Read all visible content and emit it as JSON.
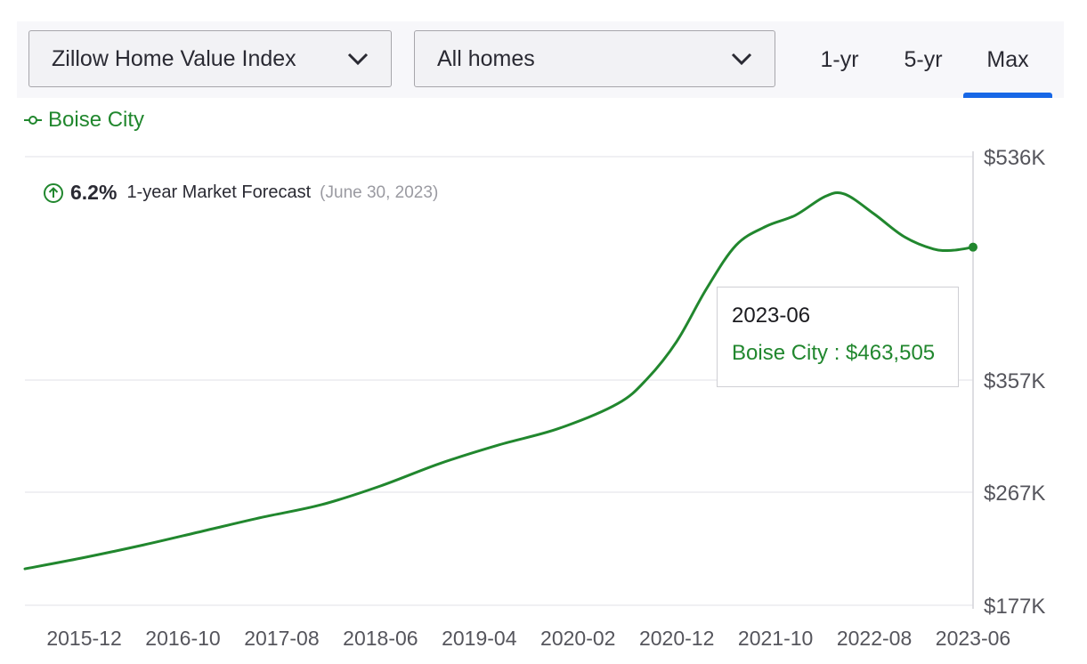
{
  "controls": {
    "metric_select": "Zillow Home Value Index",
    "homes_select": "All homes",
    "range_tabs": [
      "1-yr",
      "5-yr",
      "Max"
    ],
    "active_range": "Max",
    "accent_color": "#1767e6"
  },
  "legend": {
    "series_name": "Boise City",
    "color": "#21872e"
  },
  "forecast": {
    "icon": "arrow-up-circle-icon",
    "percent": "6.2%",
    "label": "1-year Market Forecast",
    "date": "(June 30, 2023)"
  },
  "tooltip": {
    "date": "2023-06",
    "text": "Boise City : $463,505"
  },
  "chart_data": {
    "type": "line",
    "title": "",
    "xlabel": "",
    "ylabel": "",
    "grid": true,
    "ylim": [
      177000,
      536000
    ],
    "y_ticks": [
      536000,
      357000,
      267000,
      177000
    ],
    "y_tick_labels": [
      "$536K",
      "$357K",
      "$267K",
      "$177K"
    ],
    "x_range": [
      "2015-06",
      "2023-06"
    ],
    "x_tick_labels": [
      "2015-12",
      "2016-10",
      "2017-08",
      "2018-06",
      "2019-04",
      "2020-02",
      "2020-12",
      "2021-10",
      "2022-08",
      "2023-06"
    ],
    "series": [
      {
        "name": "Boise City",
        "color": "#21872e",
        "points": [
          [
            "2015-06",
            206000
          ],
          [
            "2015-12",
            215000
          ],
          [
            "2016-06",
            225000
          ],
          [
            "2016-12",
            236000
          ],
          [
            "2017-06",
            247000
          ],
          [
            "2017-12",
            257000
          ],
          [
            "2018-06",
            272000
          ],
          [
            "2018-12",
            290000
          ],
          [
            "2019-06",
            305000
          ],
          [
            "2019-12",
            318000
          ],
          [
            "2020-06",
            338000
          ],
          [
            "2020-09",
            358000
          ],
          [
            "2020-12",
            388000
          ],
          [
            "2021-03",
            430000
          ],
          [
            "2021-06",
            465000
          ],
          [
            "2021-09",
            480000
          ],
          [
            "2021-12",
            489000
          ],
          [
            "2022-03",
            504000
          ],
          [
            "2022-05",
            506000
          ],
          [
            "2022-08",
            490000
          ],
          [
            "2022-11",
            472000
          ],
          [
            "2023-02",
            462000
          ],
          [
            "2023-04",
            461000
          ],
          [
            "2023-06",
            463505
          ]
        ]
      }
    ]
  }
}
